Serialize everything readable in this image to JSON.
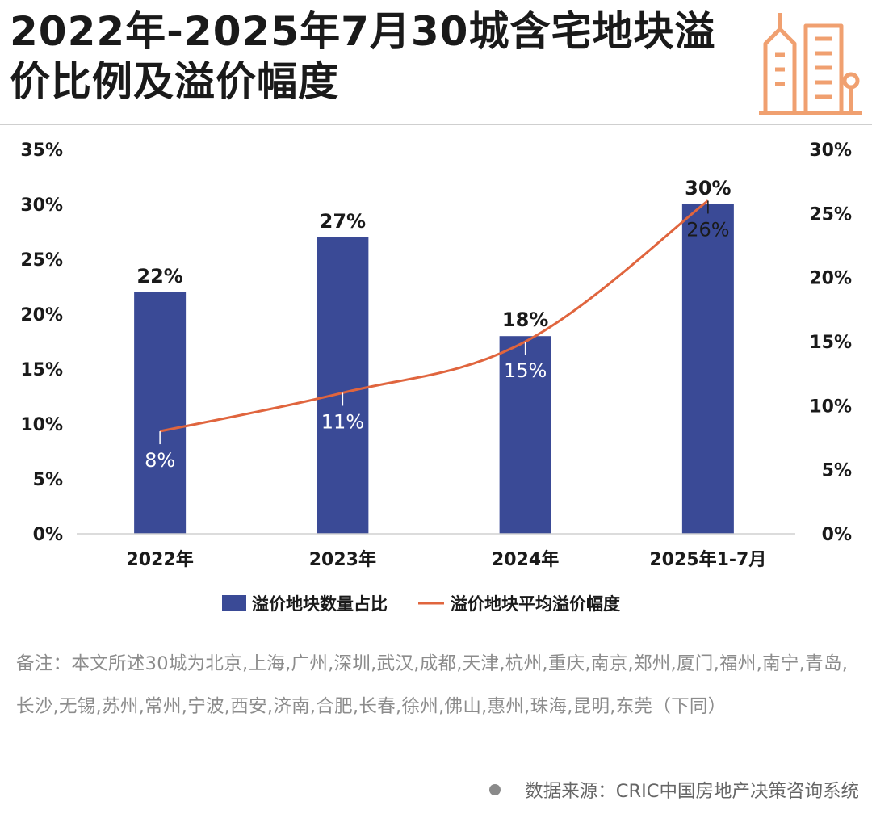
{
  "title": "2022年-2025年7月30城含宅地块溢价比例及溢价幅度",
  "colors": {
    "bar": "#3a4a96",
    "line": "#e0653e",
    "icon": "#f0a070"
  },
  "icon": "buildings-icon",
  "note": "备注：本文所述30城为北京,上海,广州,深圳,武汉,成都,天津,杭州,重庆,南京,郑州,厦门,福州,南宁,青岛,长沙,无锡,苏州,常州,宁波,西安,济南,合肥,长春,徐州,佛山,惠州,珠海,昆明,东莞（下同）",
  "source": "数据来源：CRIC中国房地产决策咨询系统",
  "chart_data": {
    "type": "bar",
    "categories": [
      "2022年",
      "2023年",
      "2024年",
      "2025年1-7月"
    ],
    "series": [
      {
        "name": "溢价地块数量占比",
        "type": "bar",
        "axis": "left",
        "values": [
          22,
          27,
          18,
          30
        ],
        "labels": [
          "22%",
          "27%",
          "18%",
          "30%"
        ]
      },
      {
        "name": "溢价地块平均溢价幅度",
        "type": "line",
        "axis": "right",
        "values": [
          8,
          11,
          15,
          26
        ],
        "labels": [
          "8%",
          "11%",
          "15%",
          "26%"
        ]
      }
    ],
    "y_left": {
      "ylim": [
        0,
        35
      ],
      "ticks": [
        0,
        5,
        10,
        15,
        20,
        25,
        30,
        35
      ],
      "tick_labels": [
        "0%",
        "5%",
        "10%",
        "15%",
        "20%",
        "25%",
        "30%",
        "35%"
      ]
    },
    "y_right": {
      "ylim": [
        0,
        30
      ],
      "ticks": [
        0,
        5,
        10,
        15,
        20,
        25,
        30
      ],
      "tick_labels": [
        "0%",
        "5%",
        "10%",
        "15%",
        "20%",
        "25%",
        "30%"
      ]
    },
    "legend": "bottom-center",
    "grid": false
  }
}
